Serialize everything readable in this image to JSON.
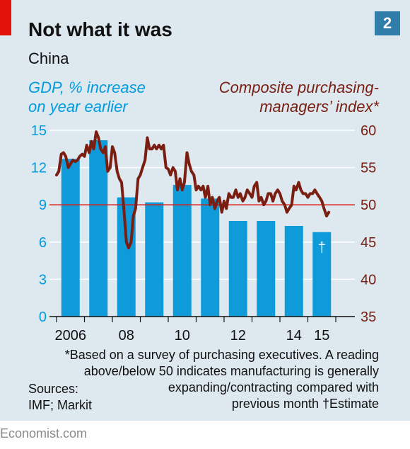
{
  "header": {
    "title": "Not what it was",
    "badge": "2",
    "subtitle": "China"
  },
  "left_axis_title": [
    "GDP, % increase",
    "on year earlier"
  ],
  "right_axis_title": [
    "Composite purchasing-",
    "managers’ index*"
  ],
  "footnote": [
    "*Based on a survey of purchasing executives. A reading",
    "above/below 50 indicates manufacturing is generally",
    "expanding/contracting compared with",
    "previous month  †Estimate"
  ],
  "sources": [
    "Sources:",
    "IMF; Markit"
  ],
  "logo": "Economist.com",
  "colors": {
    "bars": "#0f9ad9",
    "line": "#7a1e12",
    "ref_line": "#e3120b",
    "background": "#dde8ef",
    "grid": "#ffffff"
  },
  "chart_data": {
    "type": "bar",
    "categories": [
      "2006",
      "2007",
      "2008",
      "2009",
      "2010",
      "2011",
      "2012",
      "2013",
      "2014",
      "2015"
    ],
    "x_tick_labels": [
      "2006",
      "08",
      "10",
      "12",
      "14",
      "15"
    ],
    "left_ylim": [
      0,
      15
    ],
    "left_ticks": [
      "0",
      "3",
      "6",
      "9",
      "12",
      "15"
    ],
    "right_ylim": [
      35,
      60
    ],
    "right_ticks": [
      "35",
      "40",
      "45",
      "50",
      "55",
      "60"
    ],
    "reference_line": 50,
    "series": [
      {
        "kind": "bar",
        "axis": "left",
        "values": [
          12.7,
          14.2,
          9.6,
          9.2,
          10.6,
          9.5,
          7.7,
          7.7,
          7.3,
          6.8
        ],
        "annotation": {
          "index": 9,
          "text": "†"
        }
      },
      {
        "kind": "line",
        "axis": "right",
        "x": [
          2006.0,
          2006.08,
          2006.17,
          2006.25,
          2006.33,
          2006.42,
          2006.5,
          2006.58,
          2006.67,
          2006.75,
          2006.83,
          2006.92,
          2007.0,
          2007.08,
          2007.17,
          2007.25,
          2007.33,
          2007.42,
          2007.5,
          2007.58,
          2007.67,
          2007.75,
          2007.83,
          2007.92,
          2008.0,
          2008.08,
          2008.17,
          2008.25,
          2008.33,
          2008.42,
          2008.5,
          2008.58,
          2008.67,
          2008.75,
          2008.83,
          2008.92,
          2009.0,
          2009.08,
          2009.17,
          2009.25,
          2009.33,
          2009.42,
          2009.5,
          2009.58,
          2009.67,
          2009.75,
          2009.83,
          2009.92,
          2010.0,
          2010.08,
          2010.17,
          2010.25,
          2010.33,
          2010.42,
          2010.5,
          2010.58,
          2010.67,
          2010.75,
          2010.83,
          2010.92,
          2011.0,
          2011.08,
          2011.17,
          2011.25,
          2011.33,
          2011.42,
          2011.5,
          2011.58,
          2011.67,
          2011.75,
          2011.83,
          2011.92,
          2012.0,
          2012.08,
          2012.17,
          2012.25,
          2012.33,
          2012.42,
          2012.5,
          2012.58,
          2012.67,
          2012.75,
          2012.83,
          2012.92,
          2013.0,
          2013.08,
          2013.17,
          2013.25,
          2013.33,
          2013.42,
          2013.5,
          2013.58,
          2013.67,
          2013.75,
          2013.83,
          2013.92,
          2014.0,
          2014.08,
          2014.17,
          2014.25,
          2014.33,
          2014.42,
          2014.5,
          2014.58,
          2014.67,
          2014.75,
          2014.83,
          2014.92,
          2015.0,
          2015.08,
          2015.17,
          2015.25,
          2015.33,
          2015.42,
          2015.5,
          2015.58,
          2015.67,
          2015.75
        ],
        "values": [
          54.0,
          54.5,
          56.8,
          57.0,
          56.5,
          55.0,
          55.5,
          56.0,
          55.8,
          56.0,
          56.5,
          56.8,
          56.5,
          58.0,
          57.0,
          58.5,
          57.5,
          59.8,
          59.0,
          57.5,
          57.0,
          57.8,
          54.5,
          55.0,
          57.8,
          57.0,
          54.5,
          53.5,
          53.0,
          49.0,
          45.0,
          44.2,
          45.0,
          48.5,
          49.5,
          53.5,
          54.0,
          55.0,
          56.0,
          59.0,
          57.5,
          57.5,
          58.0,
          57.5,
          58.0,
          57.5,
          58.0,
          55.0,
          54.8,
          54.0,
          55.0,
          54.5,
          52.0,
          53.5,
          52.0,
          53.0,
          57.0,
          55.5,
          54.5,
          54.0,
          52.0,
          52.5,
          52.0,
          52.5,
          51.0,
          52.5,
          50.0,
          51.0,
          49.5,
          50.5,
          51.0,
          49.0,
          50.5,
          49.5,
          51.5,
          51.0,
          51.0,
          52.0,
          51.0,
          51.5,
          50.5,
          51.0,
          52.0,
          51.5,
          51.0,
          52.5,
          53.0,
          50.5,
          51.0,
          50.0,
          50.5,
          51.5,
          51.5,
          50.5,
          51.5,
          52.0,
          51.5,
          50.5,
          50.0,
          49.0,
          49.5,
          50.0,
          52.5,
          52.0,
          53.0,
          52.0,
          51.5,
          51.5,
          51.0,
          51.5,
          51.5,
          52.0,
          51.5,
          51.0,
          50.5,
          49.5,
          48.5,
          49.0
        ]
      }
    ]
  }
}
